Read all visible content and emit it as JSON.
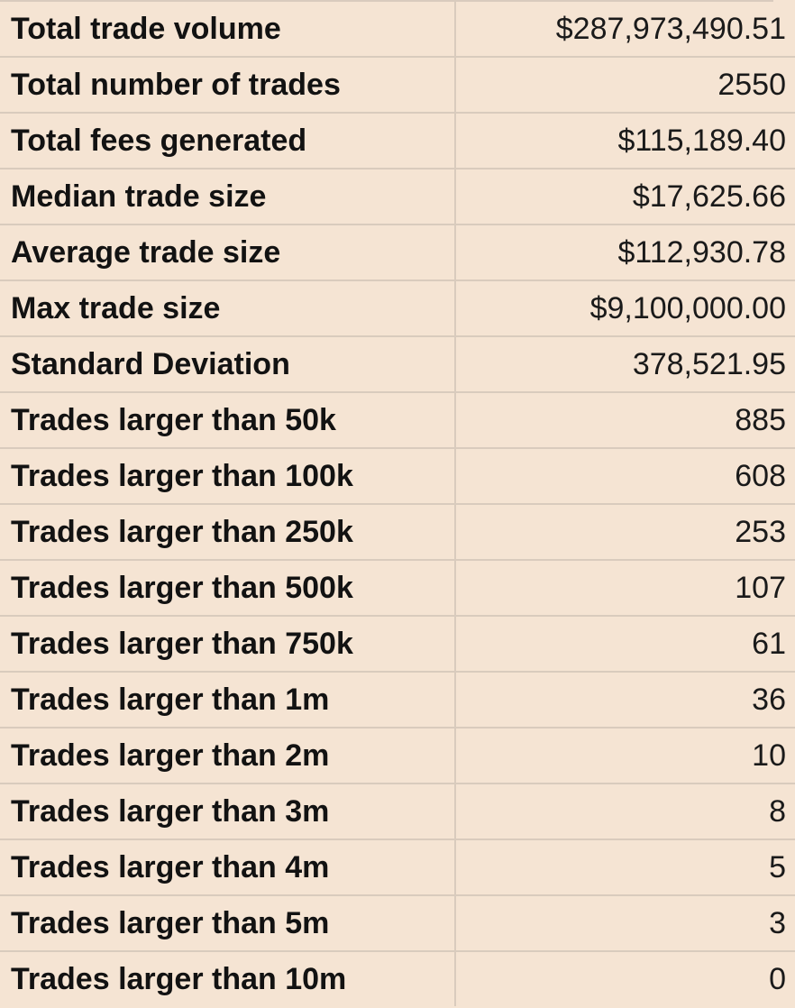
{
  "table": {
    "rows": [
      {
        "label": "Total trade volume",
        "value": "$287,973,490.51"
      },
      {
        "label": "Total number of trades",
        "value": "2550"
      },
      {
        "label": "Total fees generated",
        "value": "$115,189.40"
      },
      {
        "label": "Median trade size",
        "value": "$17,625.66"
      },
      {
        "label": "Average trade size",
        "value": "$112,930.78"
      },
      {
        "label": "Max trade size",
        "value": "$9,100,000.00"
      },
      {
        "label": "Standard Deviation",
        "value": "378,521.95"
      },
      {
        "label": "Trades larger than 50k",
        "value": "885"
      },
      {
        "label": "Trades larger than 100k",
        "value": "608"
      },
      {
        "label": "Trades larger than 250k",
        "value": "253"
      },
      {
        "label": "Trades larger than 500k",
        "value": "107"
      },
      {
        "label": "Trades larger than 750k",
        "value": "61"
      },
      {
        "label": "Trades larger than 1m",
        "value": "36"
      },
      {
        "label": "Trades larger than 2m",
        "value": "10"
      },
      {
        "label": "Trades larger than 3m",
        "value": "8"
      },
      {
        "label": "Trades larger than 4m",
        "value": "5"
      },
      {
        "label": "Trades larger than 5m",
        "value": "3"
      },
      {
        "label": "Trades larger than 10m",
        "value": "0"
      }
    ]
  },
  "colors": {
    "background": "#f5e4d3",
    "gridline": "#d9cbbd",
    "text": "#121212"
  }
}
